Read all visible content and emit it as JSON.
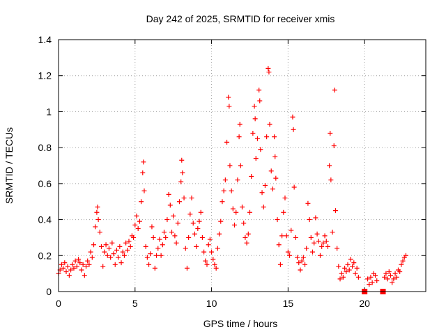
{
  "chart_data": {
    "type": "scatter",
    "title": "Day 242 of 2025, SRMTID for receiver xmis",
    "xlabel": "GPS time / hours",
    "ylabel": "SRMTID / TECUs",
    "xlim": [
      0,
      24
    ],
    "ylim": [
      0,
      1.4
    ],
    "xticks": [
      0,
      5,
      10,
      15,
      20
    ],
    "xtick_labels": [
      "0",
      "5",
      "10",
      "15",
      "20"
    ],
    "yticks": [
      0,
      0.2,
      0.4,
      0.6,
      0.8,
      1.0,
      1.2,
      1.4
    ],
    "ytick_labels": [
      "0",
      "0.2",
      "0.4",
      "0.6",
      "0.8",
      "1",
      "1.2",
      "1.4"
    ],
    "grid": true,
    "marker": "plus",
    "square_markers": [
      {
        "x": 20.0,
        "y": 0.0
      },
      {
        "x": 21.2,
        "y": 0.0
      }
    ],
    "series": [
      {
        "name": "SRMTID",
        "color": "#ff0000",
        "points": [
          [
            0.0,
            0.1
          ],
          [
            0.1,
            0.12
          ],
          [
            0.2,
            0.15
          ],
          [
            0.3,
            0.13
          ],
          [
            0.4,
            0.16
          ],
          [
            0.5,
            0.11
          ],
          [
            0.6,
            0.14
          ],
          [
            0.7,
            0.09
          ],
          [
            0.8,
            0.12
          ],
          [
            0.9,
            0.15
          ],
          [
            1.0,
            0.13
          ],
          [
            1.1,
            0.17
          ],
          [
            1.2,
            0.14
          ],
          [
            1.3,
            0.18
          ],
          [
            1.4,
            0.16
          ],
          [
            1.5,
            0.12
          ],
          [
            1.6,
            0.15
          ],
          [
            1.7,
            0.09
          ],
          [
            1.8,
            0.14
          ],
          [
            1.9,
            0.17
          ],
          [
            2.0,
            0.15
          ],
          [
            2.1,
            0.22
          ],
          [
            2.2,
            0.19
          ],
          [
            2.3,
            0.26
          ],
          [
            2.4,
            0.36
          ],
          [
            2.5,
            0.44
          ],
          [
            2.55,
            0.47
          ],
          [
            2.6,
            0.4
          ],
          [
            2.7,
            0.33
          ],
          [
            2.8,
            0.25
          ],
          [
            2.9,
            0.14
          ],
          [
            3.0,
            0.22
          ],
          [
            3.1,
            0.26
          ],
          [
            3.2,
            0.2
          ],
          [
            3.3,
            0.24
          ],
          [
            3.4,
            0.19
          ],
          [
            3.5,
            0.27
          ],
          [
            3.6,
            0.21
          ],
          [
            3.7,
            0.15
          ],
          [
            3.8,
            0.23
          ],
          [
            3.9,
            0.19
          ],
          [
            4.0,
            0.25
          ],
          [
            4.1,
            0.16
          ],
          [
            4.2,
            0.22
          ],
          [
            4.3,
            0.2
          ],
          [
            4.4,
            0.27
          ],
          [
            4.5,
            0.23
          ],
          [
            4.6,
            0.28
          ],
          [
            4.7,
            0.25
          ],
          [
            4.8,
            0.31
          ],
          [
            4.9,
            0.3
          ],
          [
            5.0,
            0.37
          ],
          [
            5.1,
            0.42
          ],
          [
            5.2,
            0.35
          ],
          [
            5.3,
            0.39
          ],
          [
            5.4,
            0.5
          ],
          [
            5.5,
            0.66
          ],
          [
            5.55,
            0.72
          ],
          [
            5.6,
            0.56
          ],
          [
            5.7,
            0.25
          ],
          [
            5.8,
            0.19
          ],
          [
            5.9,
            0.15
          ],
          [
            6.0,
            0.21
          ],
          [
            6.1,
            0.36
          ],
          [
            6.2,
            0.3
          ],
          [
            6.3,
            0.13
          ],
          [
            6.4,
            0.2
          ],
          [
            6.5,
            0.24
          ],
          [
            6.6,
            0.29
          ],
          [
            6.7,
            0.2
          ],
          [
            6.8,
            0.26
          ],
          [
            6.9,
            0.33
          ],
          [
            7.0,
            0.3
          ],
          [
            7.1,
            0.4
          ],
          [
            7.2,
            0.54
          ],
          [
            7.3,
            0.48
          ],
          [
            7.4,
            0.33
          ],
          [
            7.5,
            0.42
          ],
          [
            7.6,
            0.31
          ],
          [
            7.7,
            0.27
          ],
          [
            7.8,
            0.38
          ],
          [
            7.9,
            0.5
          ],
          [
            8.0,
            0.61
          ],
          [
            8.05,
            0.73
          ],
          [
            8.1,
            0.66
          ],
          [
            8.2,
            0.52
          ],
          [
            8.3,
            0.24
          ],
          [
            8.4,
            0.13
          ],
          [
            8.5,
            0.3
          ],
          [
            8.6,
            0.43
          ],
          [
            8.7,
            0.52
          ],
          [
            8.8,
            0.38
          ],
          [
            8.9,
            0.32
          ],
          [
            9.0,
            0.25
          ],
          [
            9.1,
            0.35
          ],
          [
            9.2,
            0.39
          ],
          [
            9.3,
            0.44
          ],
          [
            9.4,
            0.3
          ],
          [
            9.5,
            0.22
          ],
          [
            9.6,
            0.17
          ],
          [
            9.7,
            0.15
          ],
          [
            9.8,
            0.26
          ],
          [
            9.9,
            0.29
          ],
          [
            10.0,
            0.22
          ],
          [
            10.1,
            0.18
          ],
          [
            10.2,
            0.15
          ],
          [
            10.3,
            0.13
          ],
          [
            10.4,
            0.24
          ],
          [
            10.5,
            0.32
          ],
          [
            10.6,
            0.39
          ],
          [
            10.7,
            0.5
          ],
          [
            10.8,
            0.56
          ],
          [
            10.9,
            0.62
          ],
          [
            11.0,
            0.83
          ],
          [
            11.1,
            1.08
          ],
          [
            11.15,
            1.03
          ],
          [
            11.2,
            0.7
          ],
          [
            11.3,
            0.56
          ],
          [
            11.4,
            0.46
          ],
          [
            11.5,
            0.37
          ],
          [
            11.6,
            0.44
          ],
          [
            11.7,
            0.62
          ],
          [
            11.8,
            0.86
          ],
          [
            11.85,
            0.93
          ],
          [
            11.9,
            0.7
          ],
          [
            12.0,
            0.47
          ],
          [
            12.1,
            0.38
          ],
          [
            12.2,
            0.3
          ],
          [
            12.3,
            0.27
          ],
          [
            12.4,
            0.32
          ],
          [
            12.5,
            0.44
          ],
          [
            12.6,
            0.64
          ],
          [
            12.7,
            0.88
          ],
          [
            12.8,
            1.03
          ],
          [
            12.85,
            0.96
          ],
          [
            12.9,
            0.74
          ],
          [
            13.0,
            0.85
          ],
          [
            13.1,
            1.12
          ],
          [
            13.15,
            1.06
          ],
          [
            13.2,
            0.79
          ],
          [
            13.3,
            0.55
          ],
          [
            13.4,
            0.47
          ],
          [
            13.5,
            0.59
          ],
          [
            13.6,
            0.86
          ],
          [
            13.7,
            1.24
          ],
          [
            13.75,
            1.22
          ],
          [
            13.8,
            0.93
          ],
          [
            13.9,
            0.67
          ],
          [
            14.0,
            0.57
          ],
          [
            14.1,
            0.86
          ],
          [
            14.15,
            0.75
          ],
          [
            14.2,
            0.63
          ],
          [
            14.3,
            0.4
          ],
          [
            14.4,
            0.26
          ],
          [
            14.5,
            0.15
          ],
          [
            14.6,
            0.31
          ],
          [
            14.7,
            0.44
          ],
          [
            14.8,
            0.52
          ],
          [
            14.9,
            0.31
          ],
          [
            15.0,
            0.22
          ],
          [
            15.1,
            0.2
          ],
          [
            15.2,
            0.34
          ],
          [
            15.3,
            0.97
          ],
          [
            15.35,
            0.9
          ],
          [
            15.4,
            0.58
          ],
          [
            15.5,
            0.3
          ],
          [
            15.6,
            0.19
          ],
          [
            15.7,
            0.16
          ],
          [
            15.8,
            0.12
          ],
          [
            15.9,
            0.17
          ],
          [
            16.0,
            0.19
          ],
          [
            16.1,
            0.15
          ],
          [
            16.2,
            0.24
          ],
          [
            16.3,
            0.49
          ],
          [
            16.4,
            0.4
          ],
          [
            16.5,
            0.3
          ],
          [
            16.6,
            0.22
          ],
          [
            16.7,
            0.27
          ],
          [
            16.8,
            0.41
          ],
          [
            16.9,
            0.32
          ],
          [
            17.0,
            0.28
          ],
          [
            17.1,
            0.2
          ],
          [
            17.2,
            0.25
          ],
          [
            17.3,
            0.27
          ],
          [
            17.4,
            0.31
          ],
          [
            17.5,
            0.28
          ],
          [
            17.6,
            0.25
          ],
          [
            17.7,
            0.7
          ],
          [
            17.75,
            0.88
          ],
          [
            17.8,
            0.62
          ],
          [
            17.9,
            0.33
          ],
          [
            18.0,
            0.81
          ],
          [
            18.05,
            1.12
          ],
          [
            18.1,
            0.45
          ],
          [
            18.2,
            0.24
          ],
          [
            18.3,
            0.14
          ],
          [
            18.4,
            0.07
          ],
          [
            18.5,
            0.1
          ],
          [
            18.6,
            0.08
          ],
          [
            18.7,
            0.13
          ],
          [
            18.8,
            0.11
          ],
          [
            18.9,
            0.15
          ],
          [
            19.0,
            0.12
          ],
          [
            19.1,
            0.18
          ],
          [
            19.2,
            0.14
          ],
          [
            19.3,
            0.16
          ],
          [
            19.4,
            0.1
          ],
          [
            19.5,
            0.13
          ],
          [
            19.6,
            0.08
          ],
          [
            20.2,
            0.07
          ],
          [
            20.3,
            0.04
          ],
          [
            20.4,
            0.08
          ],
          [
            20.5,
            0.05
          ],
          [
            20.6,
            0.1
          ],
          [
            20.7,
            0.09
          ],
          [
            20.8,
            0.06
          ],
          [
            21.3,
            0.08
          ],
          [
            21.4,
            0.1
          ],
          [
            21.5,
            0.07
          ],
          [
            21.6,
            0.11
          ],
          [
            21.7,
            0.09
          ],
          [
            21.8,
            0.05
          ],
          [
            21.9,
            0.07
          ],
          [
            22.0,
            0.1
          ],
          [
            22.1,
            0.08
          ],
          [
            22.2,
            0.12
          ],
          [
            22.3,
            0.11
          ],
          [
            22.4,
            0.15
          ],
          [
            22.5,
            0.17
          ],
          [
            22.6,
            0.19
          ],
          [
            22.7,
            0.2
          ]
        ]
      }
    ]
  }
}
